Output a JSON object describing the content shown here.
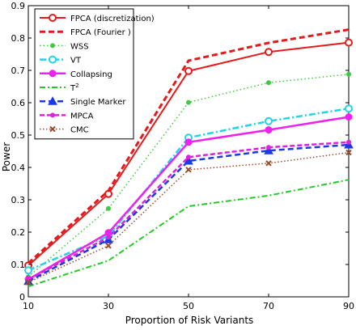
{
  "chart_data": {
    "type": "line",
    "xlabel": "Proportion of Risk Variants",
    "ylabel": "Power",
    "x": [
      10,
      30,
      50,
      70,
      90
    ],
    "xlim": [
      10,
      90
    ],
    "ylim": [
      0,
      0.9
    ],
    "xticks": [
      "10",
      "30",
      "50",
      "70",
      "90"
    ],
    "yticks": [
      "0",
      "0.1",
      "0.2",
      "0.3",
      "0.4",
      "0.5",
      "0.6",
      "0.7",
      "0.8",
      "0.9"
    ],
    "grid": false,
    "legend_position": "top-left",
    "series": [
      {
        "name": "FPCA (discretization)",
        "values": [
          0.097,
          0.318,
          0.698,
          0.757,
          0.786
        ],
        "color": "#e41a1c",
        "dash": "",
        "width": 2,
        "marker": "circle-open"
      },
      {
        "name": "FPCA (Fourier )",
        "values": [
          0.104,
          0.328,
          0.73,
          0.785,
          0.826
        ],
        "color": "#e41a1c",
        "dash": "7,4",
        "width": 3,
        "marker": "none"
      },
      {
        "name": "WSS",
        "values": [
          0.062,
          0.273,
          0.601,
          0.662,
          0.688
        ],
        "color": "#3ec93e",
        "dash": "1.5,3",
        "width": 1.5,
        "marker": "dot"
      },
      {
        "name": "VT",
        "values": [
          0.082,
          0.188,
          0.492,
          0.543,
          0.582
        ],
        "color": "#22d3e8",
        "dash": "8,3,2,3",
        "width": 2.5,
        "marker": "circle-open"
      },
      {
        "name": "Collapsing",
        "values": [
          0.054,
          0.198,
          0.478,
          0.516,
          0.556
        ],
        "color": "#ee22ee",
        "dash": "",
        "width": 2.5,
        "marker": "circle-filled"
      },
      {
        "name": "T",
        "superscript": "2",
        "values": [
          0.032,
          0.112,
          0.28,
          0.313,
          0.362
        ],
        "color": "#22cc22",
        "dash": "7,3,2,3",
        "width": 2,
        "marker": "none"
      },
      {
        "name": "Single Marker",
        "values": [
          0.048,
          0.177,
          0.42,
          0.452,
          0.47
        ],
        "color": "#1a3ae8",
        "dash": "7,4",
        "width": 2.5,
        "marker": "triangle"
      },
      {
        "name": "MPCA",
        "values": [
          0.054,
          0.184,
          0.432,
          0.462,
          0.478
        ],
        "color": "#dd22dd",
        "dash": "6,3",
        "width": 2.5,
        "marker": "dot"
      },
      {
        "name": "CMC",
        "values": [
          0.045,
          0.158,
          0.393,
          0.413,
          0.446
        ],
        "color": "#9b4a2a",
        "dash": "1.5,2.5",
        "width": 1.5,
        "marker": "x"
      }
    ]
  }
}
